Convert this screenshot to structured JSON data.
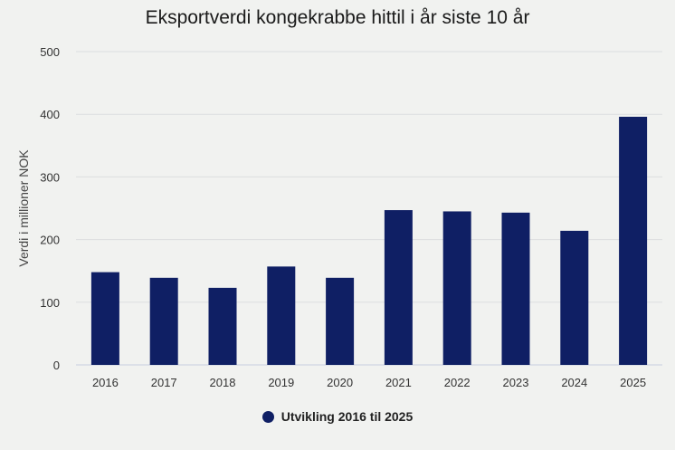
{
  "chart_data": {
    "type": "bar",
    "title": "Eksportverdi kongekrabbe hittil i år siste 10 år",
    "xlabel": "",
    "ylabel": "Verdi i millioner NOK",
    "categories": [
      "2016",
      "2017",
      "2018",
      "2019",
      "2020",
      "2021",
      "2022",
      "2023",
      "2024",
      "2025"
    ],
    "series": [
      {
        "name": "Utvikling 2016 til 2025",
        "values": [
          148,
          139,
          123,
          157,
          139,
          247,
          245,
          243,
          214,
          396
        ]
      }
    ],
    "ylim": [
      0,
      500
    ],
    "yticks": [
      0,
      100,
      200,
      300,
      400,
      500
    ],
    "grid": true,
    "legend_position": "bottom-center",
    "colors": {
      "bar": "#0f1f64",
      "grid": "#dcdedf",
      "axis": "#c6cde0",
      "text": "#333333"
    }
  }
}
